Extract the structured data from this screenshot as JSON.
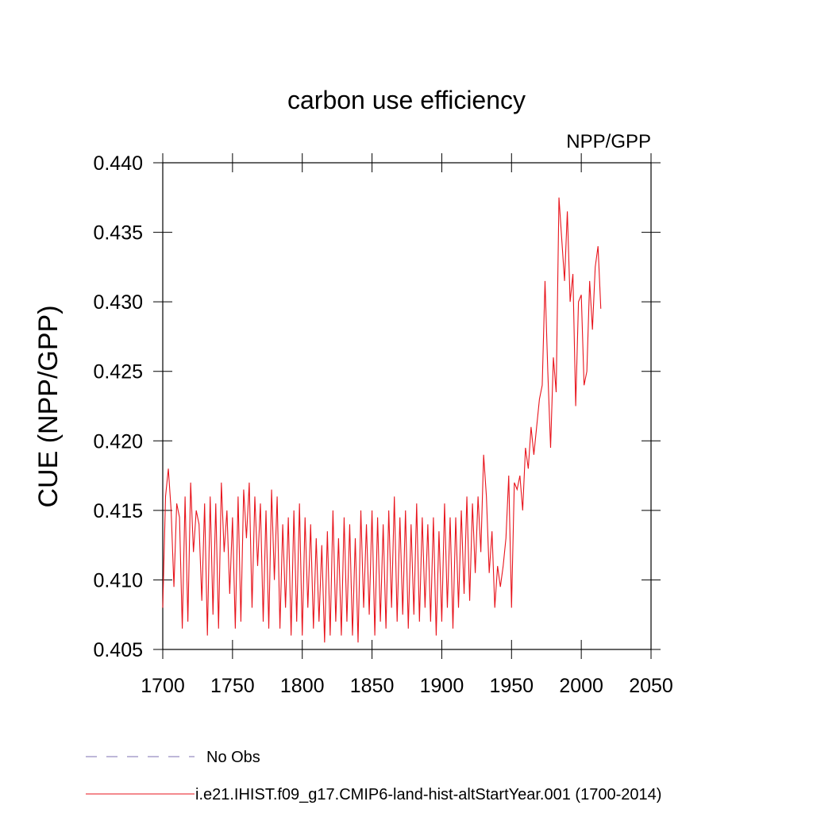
{
  "chart_data": {
    "type": "line",
    "title": "carbon use efficiency",
    "subtitle": "NPP/GPP",
    "ylabel": "CUE  (NPP/GPP)",
    "xlim": [
      1700,
      2050
    ],
    "xticks": [
      1700,
      1750,
      1800,
      1850,
      1900,
      1950,
      2000,
      2050
    ],
    "ylim": [
      0.405,
      0.44
    ],
    "yticks": [
      0.405,
      {
        "value": 0.41,
        "label": "0.410"
      },
      0.415,
      {
        "value": 0.42,
        "label": "0.420"
      },
      0.425,
      {
        "value": 0.43,
        "label": "0.430"
      },
      0.435,
      {
        "value": 0.44,
        "label": "0.440"
      }
    ],
    "no_obs": {
      "name": "No Obs",
      "color": "#7d6fb0",
      "style": "dashed"
    },
    "x": [
      1700,
      1702,
      1704,
      1706,
      1708,
      1710,
      1712,
      1714,
      1716,
      1718,
      1720,
      1722,
      1724,
      1726,
      1728,
      1730,
      1732,
      1734,
      1736,
      1738,
      1740,
      1742,
      1744,
      1746,
      1748,
      1750,
      1752,
      1754,
      1756,
      1758,
      1760,
      1762,
      1764,
      1766,
      1768,
      1770,
      1772,
      1774,
      1776,
      1778,
      1780,
      1782,
      1784,
      1786,
      1788,
      1790,
      1792,
      1794,
      1796,
      1798,
      1800,
      1802,
      1804,
      1806,
      1808,
      1810,
      1812,
      1814,
      1816,
      1818,
      1820,
      1822,
      1824,
      1826,
      1828,
      1830,
      1832,
      1834,
      1836,
      1838,
      1840,
      1842,
      1844,
      1846,
      1848,
      1850,
      1852,
      1854,
      1856,
      1858,
      1860,
      1862,
      1864,
      1866,
      1868,
      1870,
      1872,
      1874,
      1876,
      1878,
      1880,
      1882,
      1884,
      1886,
      1888,
      1890,
      1892,
      1894,
      1896,
      1898,
      1900,
      1902,
      1904,
      1906,
      1908,
      1910,
      1912,
      1914,
      1916,
      1918,
      1920,
      1922,
      1924,
      1926,
      1928,
      1930,
      1932,
      1934,
      1936,
      1938,
      1940,
      1942,
      1944,
      1946,
      1948,
      1950,
      1952,
      1954,
      1956,
      1958,
      1960,
      1962,
      1964,
      1966,
      1968,
      1970,
      1972,
      1974,
      1976,
      1978,
      1980,
      1982,
      1984,
      1986,
      1988,
      1990,
      1992,
      1994,
      1996,
      1998,
      2000,
      2002,
      2004,
      2006,
      2008,
      2010,
      2012,
      2014
    ],
    "series": [
      {
        "name": "i.e21.IHIST.f09_g17.CMIP6-land-hist-altStartYear.001 (1700-2014)",
        "color": "#e8141c",
        "values": [
          0.408,
          0.416,
          0.418,
          0.415,
          0.4095,
          0.4155,
          0.4145,
          0.4065,
          0.416,
          0.407,
          0.417,
          0.412,
          0.415,
          0.414,
          0.4085,
          0.4155,
          0.406,
          0.416,
          0.4075,
          0.4155,
          0.4065,
          0.417,
          0.412,
          0.415,
          0.409,
          0.4145,
          0.4065,
          0.416,
          0.407,
          0.4165,
          0.413,
          0.417,
          0.408,
          0.416,
          0.411,
          0.4155,
          0.407,
          0.415,
          0.4065,
          0.4165,
          0.41,
          0.416,
          0.4065,
          0.414,
          0.408,
          0.4145,
          0.406,
          0.415,
          0.407,
          0.4155,
          0.406,
          0.4145,
          0.408,
          0.414,
          0.4065,
          0.413,
          0.407,
          0.4125,
          0.4055,
          0.4135,
          0.406,
          0.415,
          0.407,
          0.413,
          0.406,
          0.4145,
          0.407,
          0.414,
          0.406,
          0.413,
          0.4055,
          0.415,
          0.408,
          0.414,
          0.4075,
          0.415,
          0.406,
          0.4145,
          0.407,
          0.414,
          0.4065,
          0.415,
          0.408,
          0.416,
          0.407,
          0.4145,
          0.4075,
          0.415,
          0.4065,
          0.414,
          0.4075,
          0.4155,
          0.407,
          0.4145,
          0.408,
          0.414,
          0.407,
          0.4145,
          0.406,
          0.4135,
          0.407,
          0.4155,
          0.408,
          0.4145,
          0.4065,
          0.4145,
          0.408,
          0.415,
          0.409,
          0.416,
          0.4085,
          0.4155,
          0.4105,
          0.416,
          0.412,
          0.419,
          0.416,
          0.4105,
          0.4135,
          0.408,
          0.411,
          0.4095,
          0.411,
          0.413,
          0.4175,
          0.408,
          0.417,
          0.4165,
          0.4175,
          0.415,
          0.4195,
          0.418,
          0.421,
          0.419,
          0.421,
          0.423,
          0.424,
          0.4315,
          0.425,
          0.4195,
          0.426,
          0.4235,
          0.4375,
          0.4345,
          0.4315,
          0.4365,
          0.43,
          0.432,
          0.4225,
          0.43,
          0.4305,
          0.424,
          0.425,
          0.4315,
          0.428,
          0.4325,
          0.434,
          0.4295
        ]
      }
    ]
  }
}
